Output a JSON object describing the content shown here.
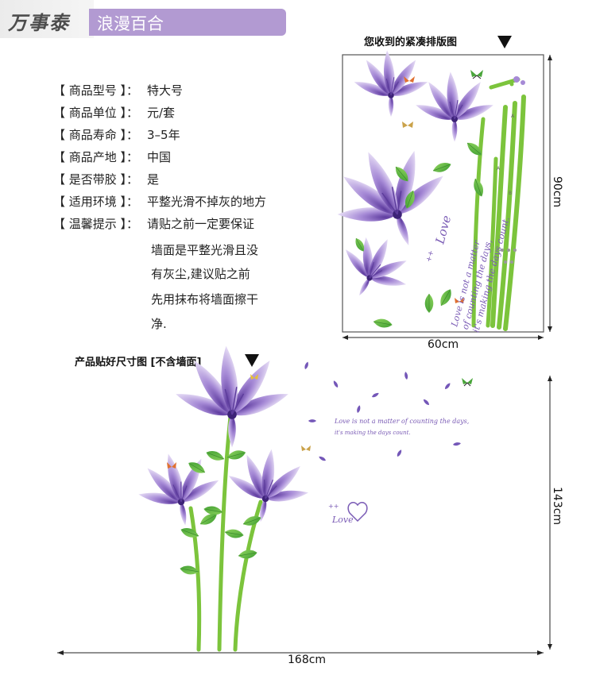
{
  "header": {
    "logo": "万事泰",
    "title": "浪漫百合"
  },
  "specs": [
    {
      "label": "【 商品型号 】：",
      "value": "特大号"
    },
    {
      "label": "【 商品单位 】：",
      "value": "元/套"
    },
    {
      "label": "【 商品寿命 】：",
      "value": "3–5年"
    },
    {
      "label": "【 商品产地 】：",
      "value": "中国"
    },
    {
      "label": "【 是否带胶 】：",
      "value": "是"
    },
    {
      "label": "【 适用环境 】：",
      "value": "平整光滑不掉灰的地方"
    },
    {
      "label": "【 温馨提示 】：",
      "value": "请贴之前一定要保证"
    }
  ],
  "tip_continuation": [
    "墙面是平整光滑且没",
    "有灰尘,建议贴之前",
    "先用抹布将墙面擦干",
    "净."
  ],
  "sheet_panel": {
    "caption": "您收到的紧凑排版图",
    "width_label": "60cm",
    "height_label": "90cm",
    "love_word": "Love",
    "quote_lines": [
      "Love is not a matter",
      "of counting the days,",
      "it's making the days count."
    ]
  },
  "applied_panel": {
    "caption": "产品贴好尺寸图  [不含墙面]",
    "width_label": "168cm",
    "height_label": "143cm",
    "quote_line1": "Love is not a matter of counting the days,",
    "quote_line2": "it's making the days count.",
    "love_word": "Love"
  },
  "colors": {
    "banner": "#b29ad2",
    "petal": "#a98fd4",
    "petal_dark": "#6d4bb0",
    "leaf": "#6cc04a",
    "stem": "#7cc43c",
    "text_purple": "#7a5bb5"
  }
}
